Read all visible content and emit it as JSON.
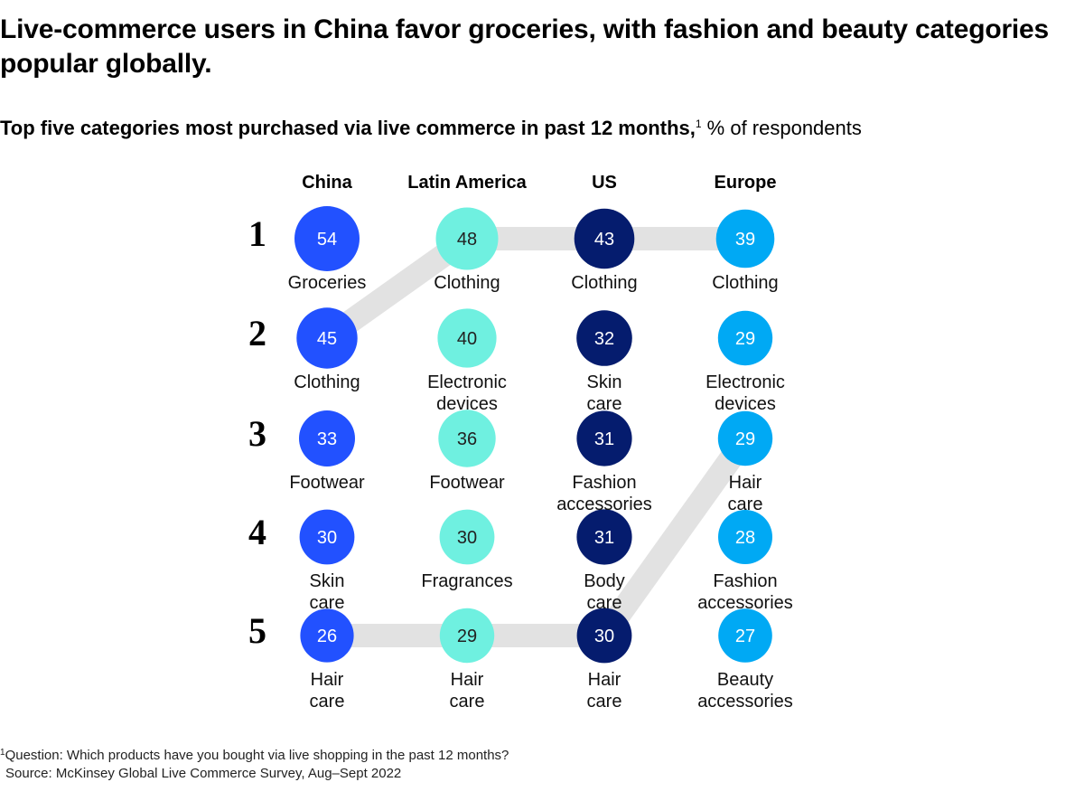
{
  "header": {
    "title": "Live-commerce users in China favor groceries, with fashion and beauty categories popular globally.",
    "subtitle_bold": "Top five categories most purchased via live commerce in past 12 months,",
    "subtitle_sup": "1",
    "subtitle_rest": " % of respondents"
  },
  "footer": {
    "note_sup": "1",
    "note": "Question: Which products have you bought via live shopping in the past 12 months?",
    "source": "Source: McKinsey Global Live Commerce Survey, Aug–Sept 2022"
  },
  "colors": {
    "china": "#2251ff",
    "latin_america": "#6ff0e0",
    "us": "#051c6e",
    "europe": "#00a9f4",
    "highlight_path": "#e2e2e2"
  },
  "chart_data": {
    "type": "table",
    "title": "Top five categories most purchased via live commerce in past 12 months, % of respondents",
    "ranks": [
      "1",
      "2",
      "3",
      "4",
      "5"
    ],
    "highlighted_category": "Clothing",
    "regions": [
      {
        "name": "China",
        "color_key": "china",
        "items": [
          {
            "rank": 1,
            "value": 54,
            "category": "Groceries"
          },
          {
            "rank": 2,
            "value": 45,
            "category": "Clothing"
          },
          {
            "rank": 3,
            "value": 33,
            "category": "Footwear"
          },
          {
            "rank": 4,
            "value": 30,
            "category": "Skin care"
          },
          {
            "rank": 5,
            "value": 26,
            "category": "Hair care"
          }
        ]
      },
      {
        "name": "Latin America",
        "color_key": "latin_america",
        "items": [
          {
            "rank": 1,
            "value": 48,
            "category": "Clothing"
          },
          {
            "rank": 2,
            "value": 40,
            "category": "Electronic devices"
          },
          {
            "rank": 3,
            "value": 36,
            "category": "Footwear"
          },
          {
            "rank": 4,
            "value": 30,
            "category": "Fragrances"
          },
          {
            "rank": 5,
            "value": 29,
            "category": "Hair care"
          }
        ]
      },
      {
        "name": "US",
        "color_key": "us",
        "items": [
          {
            "rank": 1,
            "value": 43,
            "category": "Clothing"
          },
          {
            "rank": 2,
            "value": 32,
            "category": "Skin care"
          },
          {
            "rank": 3,
            "value": 31,
            "category": "Fashion accessories"
          },
          {
            "rank": 4,
            "value": 31,
            "category": "Body care"
          },
          {
            "rank": 5,
            "value": 30,
            "category": "Hair care"
          }
        ]
      },
      {
        "name": "Europe",
        "color_key": "europe",
        "items": [
          {
            "rank": 1,
            "value": 39,
            "category": "Clothing"
          },
          {
            "rank": 2,
            "value": 29,
            "category": "Electronic devices"
          },
          {
            "rank": 3,
            "value": 29,
            "category": "Hair care"
          },
          {
            "rank": 4,
            "value": 28,
            "category": "Fashion accessories"
          },
          {
            "rank": 5,
            "value": 27,
            "category": "Beauty accessories"
          }
        ]
      }
    ],
    "connector_paths": [
      {
        "name": "Clothing",
        "points": [
          [
            "China",
            2
          ],
          [
            "Latin America",
            1
          ],
          [
            "US",
            1
          ],
          [
            "Europe",
            1
          ]
        ]
      },
      {
        "name": "Hair care",
        "points": [
          [
            "China",
            5
          ],
          [
            "Latin America",
            5
          ],
          [
            "US",
            5
          ],
          [
            "Europe",
            3
          ]
        ]
      }
    ]
  }
}
